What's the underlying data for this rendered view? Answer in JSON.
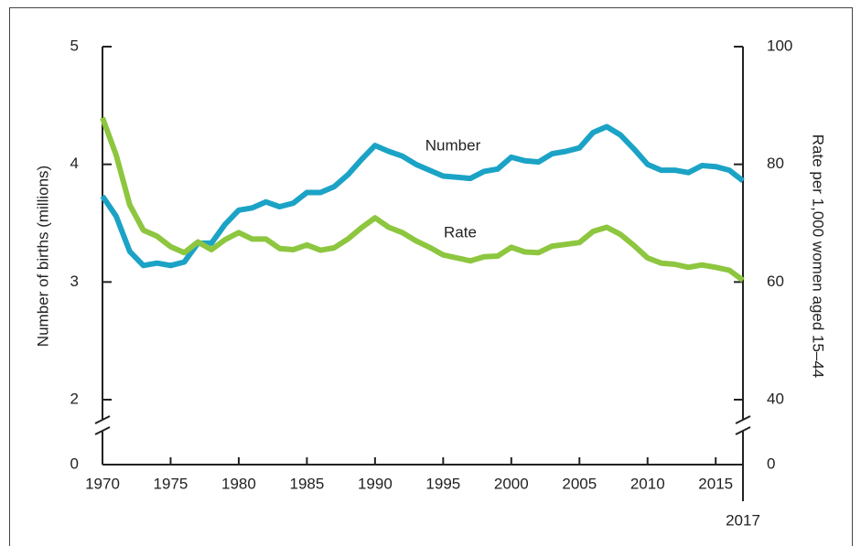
{
  "chart_data": {
    "type": "line",
    "y_label": "Number of births (millions)",
    "y2_label": "Rate per 1,000 women aged 15–44",
    "x": [
      1970,
      1971,
      1972,
      1973,
      1974,
      1975,
      1976,
      1977,
      1978,
      1979,
      1980,
      1981,
      1982,
      1983,
      1984,
      1985,
      1986,
      1987,
      1988,
      1989,
      1990,
      1991,
      1992,
      1993,
      1994,
      1995,
      1996,
      1997,
      1998,
      1999,
      2000,
      2001,
      2002,
      2003,
      2004,
      2005,
      2006,
      2007,
      2008,
      2009,
      2010,
      2011,
      2012,
      2013,
      2014,
      2015,
      2016,
      2017
    ],
    "series": [
      {
        "name": "Number",
        "color": "#1ba3c6",
        "values": [
          3.73,
          3.56,
          3.26,
          3.14,
          3.16,
          3.14,
          3.17,
          3.33,
          3.33,
          3.49,
          3.61,
          3.63,
          3.68,
          3.64,
          3.67,
          3.76,
          3.76,
          3.81,
          3.91,
          4.04,
          4.16,
          4.11,
          4.07,
          4.0,
          3.95,
          3.9,
          3.89,
          3.88,
          3.94,
          3.96,
          4.06,
          4.03,
          4.02,
          4.09,
          4.11,
          4.14,
          4.27,
          4.32,
          4.25,
          4.13,
          4.0,
          3.95,
          3.95,
          3.93,
          3.99,
          3.98,
          3.95,
          3.86
        ]
      },
      {
        "name": "Rate",
        "color": "#8dc63f",
        "axis": "y2",
        "values": [
          87.9,
          81.6,
          73.1,
          68.8,
          67.8,
          66.0,
          65.0,
          66.8,
          65.5,
          67.2,
          68.4,
          67.3,
          67.3,
          65.7,
          65.5,
          66.3,
          65.4,
          65.8,
          67.3,
          69.2,
          70.9,
          69.3,
          68.4,
          67.0,
          65.9,
          64.6,
          64.1,
          63.6,
          64.3,
          64.4,
          65.9,
          65.1,
          65.0,
          66.1,
          66.4,
          66.7,
          68.6,
          69.3,
          68.1,
          66.2,
          64.1,
          63.2,
          63.0,
          62.5,
          62.9,
          62.5,
          62.0,
          60.3
        ]
      }
    ],
    "xlim": [
      1970,
      2017
    ],
    "xticks": [
      1970,
      1975,
      1980,
      1985,
      1990,
      1995,
      2000,
      2005,
      2010,
      2015,
      2017
    ],
    "ylim": [
      2,
      5
    ],
    "yticks": [
      0,
      2,
      3,
      4,
      5
    ],
    "y2lim": [
      40,
      100
    ],
    "y2ticks": [
      0,
      40,
      60,
      80,
      100
    ],
    "axis_break": true,
    "grid": false
  }
}
